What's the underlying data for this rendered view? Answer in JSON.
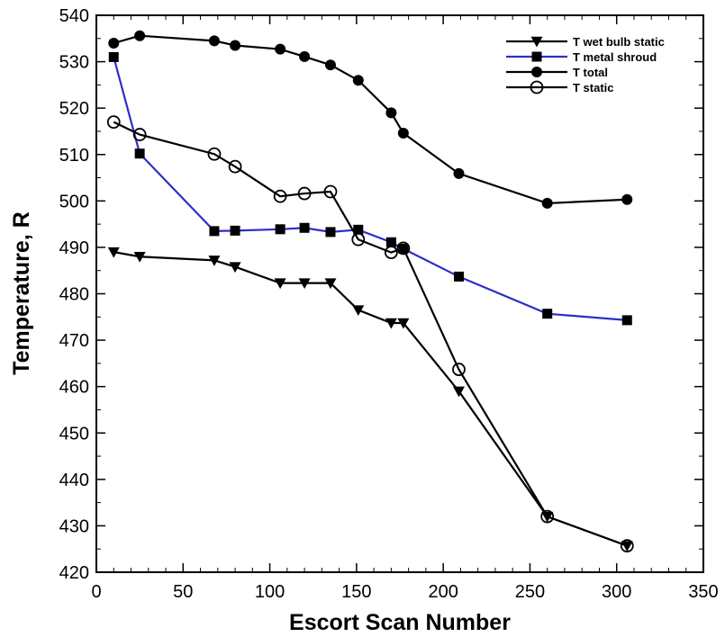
{
  "chart_data": {
    "type": "line",
    "title": "",
    "xlabel": "Escort Scan Number",
    "ylabel": "Temperature, R",
    "xlim": [
      0,
      350
    ],
    "ylim": [
      420,
      540
    ],
    "xticks": [
      0,
      50,
      100,
      150,
      200,
      250,
      300,
      350
    ],
    "yticks": [
      420,
      430,
      440,
      450,
      460,
      470,
      480,
      490,
      500,
      510,
      520,
      530,
      540
    ],
    "grid": false,
    "legend_position": "top-right",
    "series": [
      {
        "name": "T wet bulb static",
        "marker": "triangle-down",
        "color": "#000000",
        "x": [
          10,
          25,
          68,
          80,
          106,
          120,
          135,
          151,
          170,
          177,
          209,
          260,
          306
        ],
        "y": [
          489,
          488,
          487.2,
          485.8,
          482.3,
          482.3,
          482.3,
          476.5,
          473.7,
          473.7,
          459,
          432,
          425.7
        ]
      },
      {
        "name": "T metal shroud",
        "marker": "square",
        "color": "#2e2ec7",
        "x": [
          10,
          25,
          68,
          80,
          106,
          120,
          135,
          151,
          170,
          177,
          209,
          260,
          306
        ],
        "y": [
          531,
          510.2,
          493.5,
          493.6,
          493.9,
          494.2,
          493.3,
          493.8,
          491.1,
          489.7,
          483.7,
          475.7,
          474.3
        ]
      },
      {
        "name": "T total",
        "marker": "circle-filled",
        "color": "#000000",
        "x": [
          10,
          25,
          68,
          80,
          106,
          120,
          135,
          151,
          170,
          177,
          209,
          260,
          306
        ],
        "y": [
          534,
          535.6,
          534.5,
          533.5,
          532.7,
          531.1,
          529.3,
          526,
          519,
          514.6,
          505.9,
          499.5,
          500.3
        ]
      },
      {
        "name": "T static",
        "marker": "circle-open",
        "color": "#000000",
        "x": [
          10,
          25,
          68,
          80,
          106,
          120,
          135,
          151,
          170,
          177,
          209,
          260,
          306
        ],
        "y": [
          517,
          514.3,
          510.1,
          507.4,
          501,
          501.6,
          502,
          491.7,
          488.9,
          489.8,
          463.7,
          432,
          425.7
        ]
      }
    ]
  }
}
